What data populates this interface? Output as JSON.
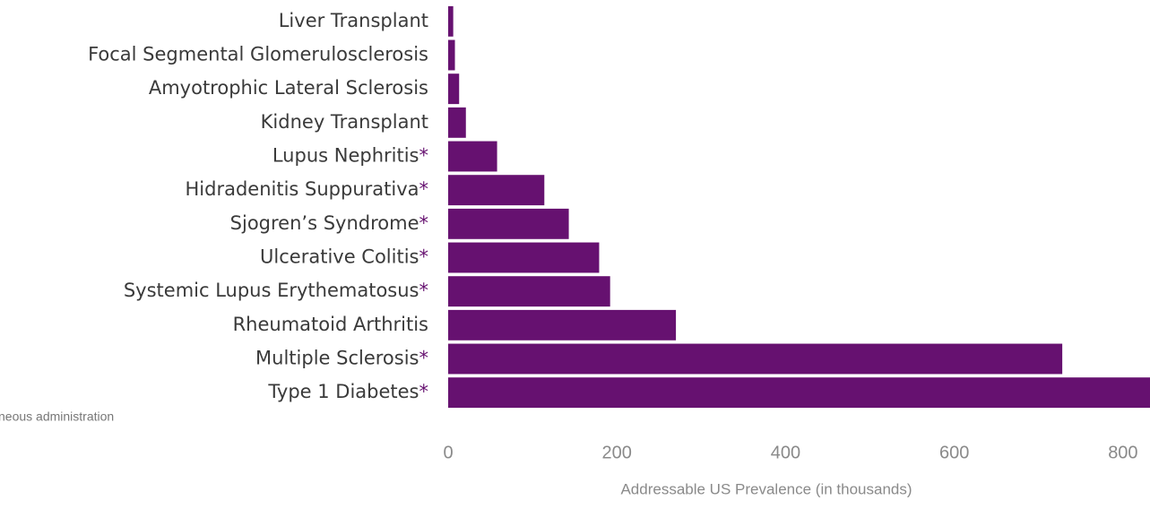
{
  "chart_data": {
    "type": "barh",
    "categories": [
      "Liver Transplant",
      "Focal Segmental Glomerulosclerosis",
      "Amyotrophic Lateral Sclerosis",
      "Kidney Transplant",
      "Lupus Nephritis*",
      "Hidradenitis Suppurativa*",
      "Sjogren’s Syndrome*",
      "Ulcerative Colitis*",
      "Systemic Lupus Erythematosus*",
      "Rheumatoid Arthritis",
      "Multiple Sclerosis*",
      "Type 1 Diabetes*"
    ],
    "values": [
      6,
      8,
      13,
      21,
      58,
      114,
      143,
      179,
      192,
      270,
      728,
      850
    ],
    "color": "#661170",
    "xlim": [
      0,
      832
    ],
    "xticks": [
      0,
      200,
      400,
      600,
      800
    ],
    "xlabel": "Addressable US Prevalence (in thousands)",
    "footnote": "neous administration"
  }
}
